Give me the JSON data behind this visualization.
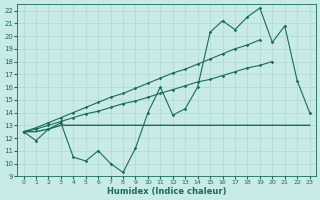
{
  "x_values": [
    0,
    1,
    2,
    3,
    4,
    5,
    6,
    7,
    8,
    9,
    10,
    11,
    12,
    13,
    14,
    15,
    16,
    17,
    18,
    19,
    20,
    21,
    22,
    23
  ],
  "jagged_line": [
    12.5,
    11.8,
    12.7,
    13.2,
    10.5,
    10.2,
    11.0,
    10.0,
    9.3,
    11.2,
    14.0,
    16.0,
    13.8,
    14.3,
    16.0,
    20.3,
    21.2,
    20.5,
    21.5,
    22.2,
    19.5,
    20.8,
    16.5,
    14.0
  ],
  "flat_line": [
    12.5,
    12.5,
    12.7,
    13.0,
    13.0,
    13.0,
    13.0,
    13.0,
    13.0,
    13.0,
    13.0,
    13.0,
    13.0,
    13.0,
    13.0,
    13.0,
    13.0,
    13.0,
    13.0,
    13.0,
    13.0,
    13.0,
    13.0,
    13.0
  ],
  "trend_low": [
    12.5,
    12.7,
    13.0,
    13.3,
    13.6,
    13.9,
    14.1,
    14.4,
    14.7,
    14.9,
    15.2,
    15.5,
    15.8,
    16.1,
    16.4,
    16.6,
    16.9,
    17.2,
    17.5,
    17.7,
    18.0,
    null,
    null,
    null
  ],
  "trend_high": [
    12.5,
    12.8,
    13.2,
    13.6,
    14.0,
    14.4,
    14.8,
    15.2,
    15.5,
    15.9,
    16.3,
    16.7,
    17.1,
    17.4,
    17.8,
    18.2,
    18.6,
    19.0,
    19.3,
    19.7,
    null,
    null,
    null,
    null
  ],
  "xlim": [
    -0.5,
    23.5
  ],
  "ylim": [
    9,
    22.5
  ],
  "yticks": [
    9,
    10,
    11,
    12,
    13,
    14,
    15,
    16,
    17,
    18,
    19,
    20,
    21,
    22
  ],
  "xticks": [
    0,
    1,
    2,
    3,
    4,
    5,
    6,
    7,
    8,
    9,
    10,
    11,
    12,
    13,
    14,
    15,
    16,
    17,
    18,
    19,
    20,
    21,
    22,
    23
  ],
  "xlabel": "Humidex (Indice chaleur)",
  "line_color": "#1a6b5a",
  "bg_color": "#c8eae8",
  "grid_color": "#b0d8d4"
}
